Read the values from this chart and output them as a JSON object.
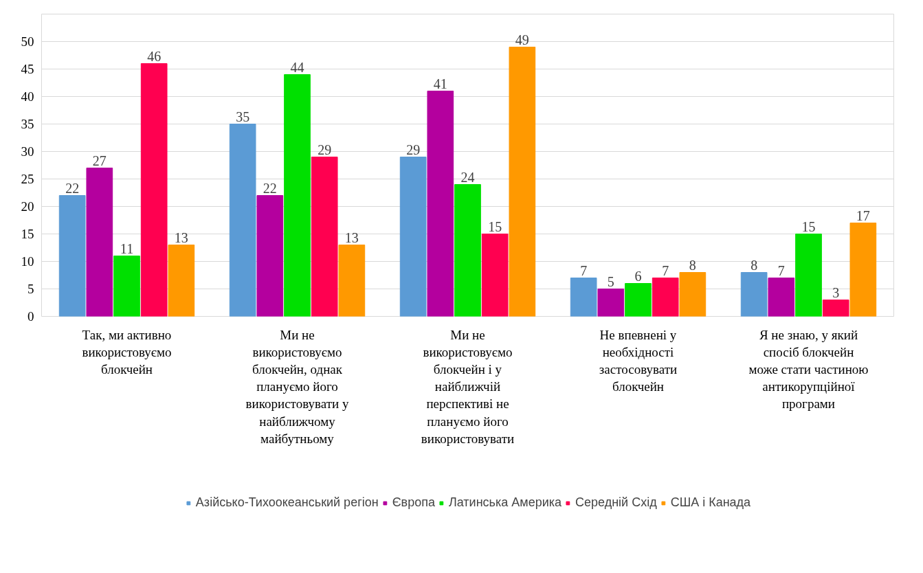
{
  "chart_data": {
    "type": "bar",
    "categories": [
      "Так, ми активно використовуємо блокчейн",
      "Ми не використовуємо блокчейн, однак плануємо його використовувати у найближчому майбутньому",
      "Ми не використовуємо блокчейн і у найближчій перспективі не плануємо його використовувати",
      "Не впевнені у необхідності застосовувати блокчейн",
      "Я не знаю, у який спосіб блокчейн може стати частиною антикорупційної програми"
    ],
    "series": [
      {
        "name": "Азійсько-Тихоокеанський регіон",
        "color": "#5b9bd5",
        "values": [
          22,
          35,
          29,
          7,
          8
        ]
      },
      {
        "name": "Європа",
        "color": "#b4009e",
        "values": [
          27,
          22,
          41,
          5,
          7
        ]
      },
      {
        "name": "Латинська Америка",
        "color": "#00e000",
        "values": [
          11,
          44,
          24,
          6,
          15
        ]
      },
      {
        "name": "Середній Схід",
        "color": "#ff0050",
        "values": [
          46,
          29,
          15,
          7,
          3
        ]
      },
      {
        "name": "США і Канада",
        "color": "#ff9900",
        "values": [
          13,
          13,
          49,
          8,
          17
        ]
      }
    ],
    "ylim": [
      0,
      55
    ],
    "yticks": [
      0,
      5,
      10,
      15,
      20,
      25,
      30,
      35,
      40,
      45,
      50,
      {
        "value": 55,
        "label": null
      }
    ],
    "grid": "y",
    "legend": "bottom",
    "data_labels": true
  }
}
